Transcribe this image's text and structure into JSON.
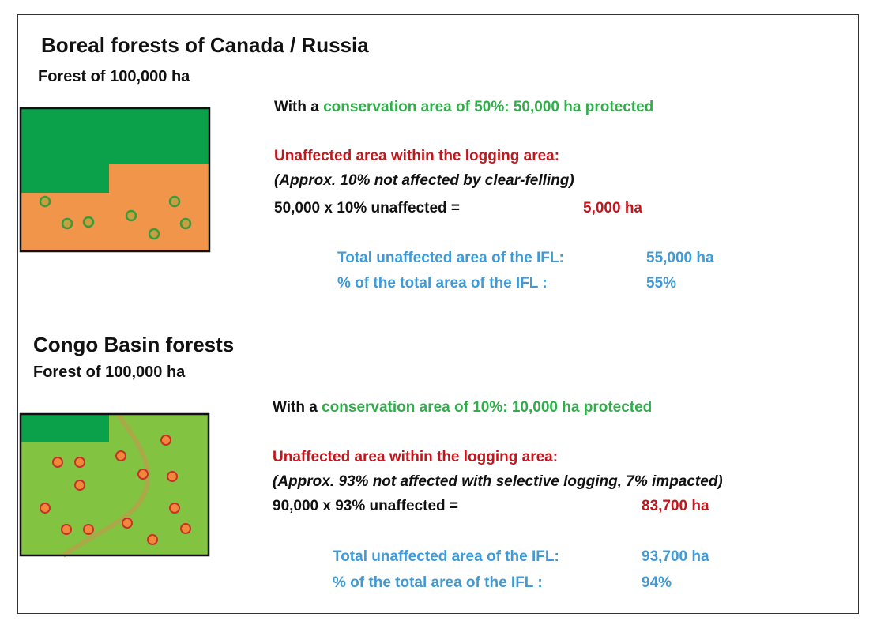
{
  "sections": [
    {
      "title": "Boreal forests of Canada / Russia",
      "subtitle": "Forest of 100,000 ha",
      "conservation_prefix": "With a",
      "conservation_text": "conservation area of 50%: 50,000 ha protected",
      "unaffected_heading": "Unaffected area within the logging area:",
      "note": "(Approx. 10% not affected by clear-felling)",
      "calc_label": "50,000 x 10% unaffected =",
      "calc_value": "5,000 ha",
      "total_label": "Total unaffected area of the IFL:",
      "total_value": "55,000 ha",
      "pct_label": "% of the total area of the IFL :",
      "pct_value": "55%"
    },
    {
      "title": "Congo Basin forests",
      "subtitle": "Forest of 100,000 ha",
      "conservation_prefix": "With a",
      "conservation_text": "conservation area of 10%: 10,000 ha protected",
      "unaffected_heading": "Unaffected area within the logging area:",
      "note": "(Approx. 93% not affected with selective logging, 7% impacted)",
      "calc_label": "90,000 x 93% unaffected =",
      "calc_value": "83,700 ha",
      "total_label": "Total unaffected area of the IFL:",
      "total_value": "93,700 ha",
      "pct_label": "% of the total area of the IFL :",
      "pct_value": "94%"
    }
  ]
}
